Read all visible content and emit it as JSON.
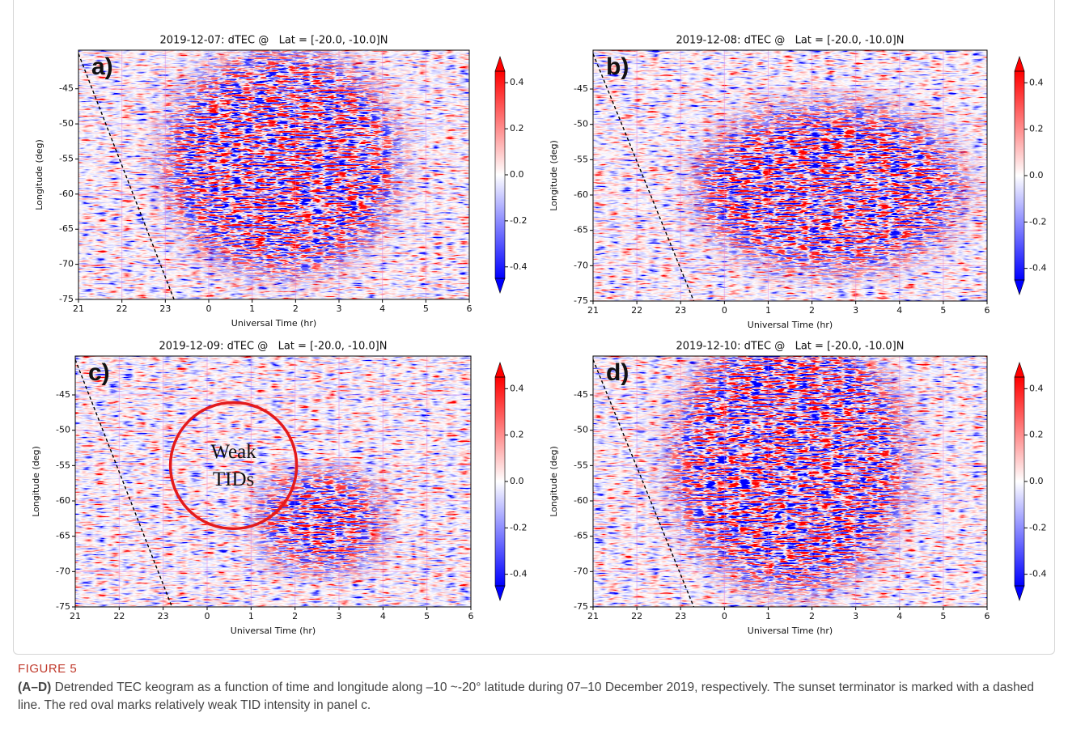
{
  "chart_data": [
    {
      "type": "heatmap",
      "title": "2019-12-07: dTEC @   Lat = [-20.0, -10.0]N",
      "panel_label": "a)",
      "xlabel": "Universal Time (hr)",
      "ylabel": "Longitude (deg)",
      "xlim": [
        21,
        30
      ],
      "xticks": [
        21,
        22,
        23,
        {
          "value": 24,
          "label": "0"
        },
        {
          "value": 25,
          "label": "1"
        },
        {
          "value": 26,
          "label": "2"
        },
        {
          "value": 27,
          "label": "3"
        },
        {
          "value": 28,
          "label": "4"
        },
        {
          "value": 29,
          "label": "5"
        },
        {
          "value": 30,
          "label": "6"
        }
      ],
      "ylim": [
        -75,
        -39.5
      ],
      "yticks": [
        -75,
        -70,
        -65,
        -60,
        -55,
        -50,
        -45
      ],
      "grid": true,
      "colorbar": {
        "clim": [
          -0.45,
          0.45
        ],
        "ticks": [
          -0.4,
          -0.2,
          {
            "value": 0,
            "label": "0.0"
          },
          0.2,
          0.4
        ],
        "colors": [
          "#0000ff",
          "#ffffff",
          "#ff0000"
        ]
      },
      "terminator": {
        "x": [
          21,
          23.2
        ],
        "y": [
          -40,
          -75
        ]
      }
    },
    {
      "type": "heatmap",
      "title": "2019-12-08: dTEC @   Lat = [-20.0, -10.0]N",
      "panel_label": "b)",
      "xlabel": "Universal Time (hr)",
      "ylabel": "Longitude (deg)",
      "xlim": [
        21,
        30
      ],
      "xticks": [
        21,
        22,
        23,
        {
          "value": 24,
          "label": "0"
        },
        {
          "value": 25,
          "label": "1"
        },
        {
          "value": 26,
          "label": "2"
        },
        {
          "value": 27,
          "label": "3"
        },
        {
          "value": 28,
          "label": "4"
        },
        {
          "value": 29,
          "label": "5"
        },
        {
          "value": 30,
          "label": "6"
        }
      ],
      "ylim": [
        -75,
        -39.5
      ],
      "yticks": [
        -75,
        -70,
        -65,
        -60,
        -55,
        -50,
        -45
      ],
      "grid": true,
      "colorbar": {
        "clim": [
          -0.45,
          0.45
        ],
        "ticks": [
          -0.4,
          -0.2,
          {
            "value": 0,
            "label": "0.0"
          },
          0.2,
          0.4
        ],
        "colors": [
          "#0000ff",
          "#ffffff",
          "#ff0000"
        ]
      },
      "terminator": {
        "x": [
          21,
          23.3
        ],
        "y": [
          -40,
          -75
        ]
      }
    },
    {
      "type": "heatmap",
      "title": "2019-12-09: dTEC @   Lat = [-20.0, -10.0]N",
      "panel_label": "c)",
      "xlabel": "Universal Time (hr)",
      "ylabel": "Longitude (deg)",
      "xlim": [
        21,
        30
      ],
      "xticks": [
        21,
        22,
        23,
        {
          "value": 24,
          "label": "0"
        },
        {
          "value": 25,
          "label": "1"
        },
        {
          "value": 26,
          "label": "2"
        },
        {
          "value": 27,
          "label": "3"
        },
        {
          "value": 28,
          "label": "4"
        },
        {
          "value": 29,
          "label": "5"
        },
        {
          "value": 30,
          "label": "6"
        }
      ],
      "ylim": [
        -75,
        -39.5
      ],
      "yticks": [
        -75,
        -70,
        -65,
        -60,
        -55,
        -50,
        -45
      ],
      "grid": true,
      "colorbar": {
        "clim": [
          -0.45,
          0.45
        ],
        "ticks": [
          -0.4,
          -0.2,
          {
            "value": 0,
            "label": "0.0"
          },
          0.2,
          0.4
        ],
        "colors": [
          "#0000ff",
          "#ffffff",
          "#ff0000"
        ]
      },
      "terminator": {
        "x": [
          21,
          23.2
        ],
        "y": [
          -40,
          -75
        ]
      },
      "annotation": {
        "text": [
          "Weak",
          "TIDs"
        ],
        "x": 24.6,
        "y": -55,
        "color": "#e31a1c"
      }
    },
    {
      "type": "heatmap",
      "title": "2019-12-10: dTEC @   Lat = [-20.0, -10.0]N",
      "panel_label": "d)",
      "xlabel": "Universal Time (hr)",
      "ylabel": "Longitude (deg)",
      "xlim": [
        21,
        30
      ],
      "xticks": [
        21,
        22,
        23,
        {
          "value": 24,
          "label": "0"
        },
        {
          "value": 25,
          "label": "1"
        },
        {
          "value": 26,
          "label": "2"
        },
        {
          "value": 27,
          "label": "3"
        },
        {
          "value": 28,
          "label": "4"
        },
        {
          "value": 29,
          "label": "5"
        },
        {
          "value": 30,
          "label": "6"
        }
      ],
      "ylim": [
        -75,
        -39.5
      ],
      "yticks": [
        -75,
        -70,
        -65,
        -60,
        -55,
        -50,
        -45
      ],
      "grid": true,
      "colorbar": {
        "clim": [
          -0.45,
          0.45
        ],
        "ticks": [
          -0.4,
          -0.2,
          {
            "value": 0,
            "label": "0.0"
          },
          0.2,
          0.4
        ],
        "colors": [
          "#0000ff",
          "#ffffff",
          "#ff0000"
        ]
      },
      "terminator": {
        "x": [
          21,
          23.3
        ],
        "y": [
          -40,
          -75
        ]
      }
    }
  ],
  "figure": {
    "label": "FIGURE 5",
    "panels": "(A–D)",
    "caption": "Detrended TEC keogram as a function of time and longitude along –10 ~-20° latitude during 07–10 December 2019, respectively. The sunset terminator is marked with a dashed line. The red oval marks relatively weak TID intensity in panel c."
  }
}
